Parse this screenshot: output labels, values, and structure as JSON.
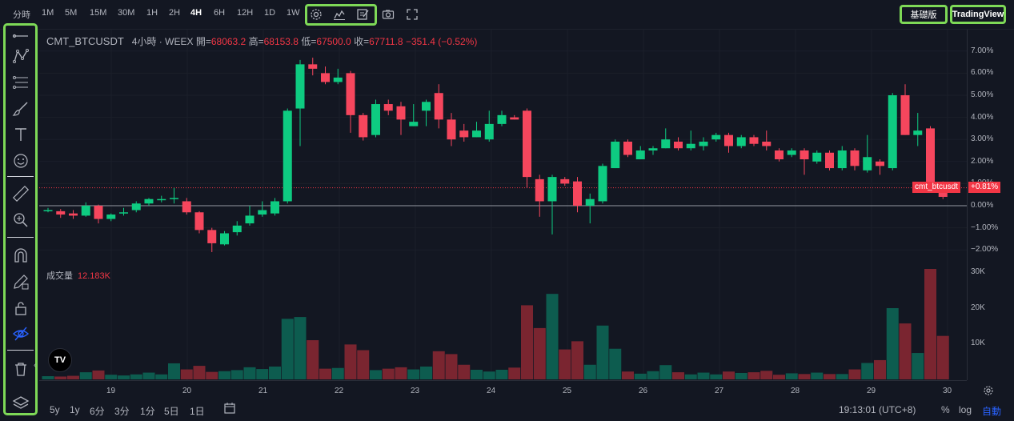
{
  "colors": {
    "up": "#089981",
    "down": "#f23645",
    "up_bright": "#0ecb81",
    "down_bright": "#f6465d",
    "highlight": "#7ed957",
    "volume_up": "#0d5c4f",
    "volume_down": "#7a2530"
  },
  "toolbar": {
    "timeframes": [
      "分時",
      "1M",
      "5M",
      "15M",
      "30M",
      "1H",
      "2H",
      "4H",
      "6H",
      "12H",
      "1D",
      "1W"
    ],
    "active_timeframe": "4H",
    "icons": [
      "settings-icon",
      "indicators-icon",
      "templates-icon",
      "camera-icon",
      "fullscreen-icon"
    ],
    "basic_label": "基礎版",
    "tradingview_label": "TradingView"
  },
  "left_tools": [
    "horizontal-line-icon",
    "pattern-icon",
    "fib-icon",
    "brush-icon",
    "text-icon",
    "emoji-icon",
    "ruler-icon",
    "zoom-in-icon",
    "magnet-icon",
    "lock-drawing-icon",
    "lock-icon",
    "hide-icon",
    "trash-icon",
    "layers-icon"
  ],
  "legend": {
    "symbol": "CMT_BTCUSDT",
    "interval_exchange": "4小時 · WEEX",
    "open_label": "開=",
    "open": "68063.2",
    "high_label": "高=",
    "high": "68153.8",
    "low_label": "低=",
    "low": "67500.0",
    "close_label": "收=",
    "close": "67711.8",
    "change": "−351.4 (−0.52%)"
  },
  "volume_legend": {
    "label": "成交量",
    "value": "12.183K"
  },
  "badges": {
    "symbol": "cmt_btcusdt",
    "pct": "+0.81%"
  },
  "bottom": {
    "ranges": [
      "5y",
      "1y",
      "6分",
      "3分",
      "1分",
      "5日",
      "1日"
    ],
    "clock": "19:13:01 (UTC+8)",
    "pct": "%",
    "log": "log",
    "auto": "自動"
  },
  "logo_text": "TV",
  "chart_data": {
    "type": "candlestick",
    "price_axis_labels": [
      "7.00%",
      "6.00%",
      "5.00%",
      "4.00%",
      "3.00%",
      "2.00%",
      "1.00%",
      "0.00%",
      "−1.00%",
      "−2.00%"
    ],
    "volume_axis_labels": [
      "30K",
      "20K",
      "10K"
    ],
    "x_labels": [
      "19",
      "20",
      "21",
      "22",
      "23",
      "24",
      "25",
      "26",
      "27",
      "28",
      "29",
      "30"
    ],
    "ylim_pct": [
      -2.5,
      7.3
    ],
    "volume_max": 34000,
    "current_pct": 0.81,
    "candles": [
      [
        -0.2,
        -0.2,
        -0.3,
        -0.1,
        900
      ],
      [
        -0.25,
        -0.4,
        -0.55,
        -0.15,
        800
      ],
      [
        -0.35,
        -0.45,
        -0.6,
        -0.2,
        1000
      ],
      [
        -0.45,
        0.0,
        -0.5,
        0.15,
        2000
      ],
      [
        0.0,
        -0.6,
        -0.8,
        0.05,
        2500
      ],
      [
        -0.6,
        -0.4,
        -0.7,
        -0.35,
        1300
      ],
      [
        -0.35,
        -0.3,
        -0.45,
        -0.1,
        1100
      ],
      [
        -0.2,
        0.1,
        -0.3,
        0.2,
        1400
      ],
      [
        0.1,
        0.3,
        0.0,
        0.35,
        1900
      ],
      [
        0.3,
        0.3,
        0.15,
        0.45,
        1400
      ],
      [
        0.3,
        0.35,
        0.1,
        0.8,
        4500
      ],
      [
        0.2,
        -0.3,
        -0.4,
        0.35,
        2800
      ],
      [
        -0.3,
        -1.1,
        -1.25,
        -0.25,
        3800
      ],
      [
        -1.1,
        -1.7,
        -2.1,
        -1.0,
        2100
      ],
      [
        -1.75,
        -1.25,
        -1.8,
        -1.15,
        2300
      ],
      [
        -1.2,
        -0.9,
        -1.35,
        -0.7,
        2600
      ],
      [
        -0.8,
        -0.45,
        -0.9,
        0.0,
        3400
      ],
      [
        -0.4,
        -0.2,
        -0.5,
        0.2,
        2900
      ],
      [
        -0.35,
        0.2,
        -0.45,
        0.35,
        3600
      ],
      [
        0.2,
        4.3,
        0.1,
        4.4,
        17000
      ],
      [
        4.4,
        6.4,
        2.7,
        6.6,
        17500
      ],
      [
        6.4,
        6.2,
        5.9,
        6.7,
        11000
      ],
      [
        6.0,
        5.6,
        5.5,
        6.3,
        3000
      ],
      [
        5.6,
        5.8,
        5.5,
        6.2,
        3200
      ],
      [
        6.0,
        4.1,
        3.3,
        6.1,
        9800
      ],
      [
        4.1,
        3.1,
        2.95,
        4.2,
        8200
      ],
      [
        3.2,
        4.6,
        3.1,
        4.8,
        2600
      ],
      [
        4.6,
        4.3,
        4.1,
        4.8,
        3000
      ],
      [
        4.5,
        3.9,
        3.2,
        4.7,
        3400
      ],
      [
        3.6,
        3.8,
        3.6,
        4.6,
        2800
      ],
      [
        4.3,
        4.7,
        3.6,
        4.8,
        3600
      ],
      [
        5.1,
        3.9,
        3.5,
        5.5,
        7900
      ],
      [
        3.9,
        3.0,
        2.7,
        4.2,
        7100
      ],
      [
        3.4,
        3.1,
        2.9,
        3.7,
        4100
      ],
      [
        3.1,
        3.4,
        3.1,
        3.8,
        2700
      ],
      [
        3.0,
        3.7,
        2.9,
        4.3,
        2200
      ],
      [
        3.7,
        4.1,
        3.6,
        4.3,
        2700
      ],
      [
        4.0,
        3.9,
        3.9,
        4.1,
        3300
      ],
      [
        4.3,
        1.3,
        0.8,
        4.4,
        20800
      ],
      [
        1.2,
        0.2,
        -0.5,
        1.4,
        14400
      ],
      [
        0.2,
        1.3,
        -1.3,
        1.4,
        24000
      ],
      [
        1.2,
        1.0,
        0.9,
        1.3,
        8400
      ],
      [
        1.1,
        0.0,
        -0.3,
        1.3,
        10700
      ],
      [
        0.0,
        0.3,
        -0.8,
        0.55,
        4100
      ],
      [
        0.2,
        1.8,
        0.1,
        1.9,
        15100
      ],
      [
        1.7,
        2.9,
        1.7,
        3.0,
        8600
      ],
      [
        2.9,
        2.3,
        2.2,
        3.0,
        2200
      ],
      [
        2.1,
        2.5,
        2.1,
        2.7,
        1600
      ],
      [
        2.5,
        2.6,
        2.3,
        2.7,
        2300
      ],
      [
        2.6,
        3.0,
        2.6,
        3.5,
        4000
      ],
      [
        2.9,
        2.6,
        2.5,
        3.1,
        2000
      ],
      [
        2.6,
        2.8,
        2.5,
        3.4,
        1400
      ],
      [
        2.7,
        2.9,
        2.5,
        3.1,
        1900
      ],
      [
        3.0,
        3.2,
        2.9,
        3.3,
        1400
      ],
      [
        3.2,
        2.7,
        2.4,
        3.3,
        2200
      ],
      [
        2.7,
        3.1,
        2.6,
        3.2,
        1800
      ],
      [
        3.1,
        2.8,
        2.7,
        3.2,
        2000
      ],
      [
        2.9,
        2.7,
        2.5,
        3.4,
        2400
      ],
      [
        2.5,
        2.1,
        2.0,
        2.6,
        1300
      ],
      [
        2.3,
        2.5,
        2.2,
        2.6,
        1700
      ],
      [
        2.5,
        2.1,
        1.4,
        2.6,
        1500
      ],
      [
        2.0,
        2.4,
        1.9,
        2.5,
        1900
      ],
      [
        2.4,
        1.7,
        1.6,
        2.5,
        1500
      ],
      [
        1.7,
        2.5,
        1.6,
        2.7,
        1500
      ],
      [
        2.5,
        1.8,
        1.6,
        2.6,
        2800
      ],
      [
        1.6,
        2.2,
        1.5,
        3.2,
        4600
      ],
      [
        2.0,
        1.8,
        1.4,
        2.1,
        5400
      ],
      [
        1.7,
        5.0,
        1.6,
        5.1,
        20000
      ],
      [
        5.0,
        3.2,
        3.2,
        5.5,
        15700
      ],
      [
        3.2,
        3.4,
        2.7,
        4.2,
        7400
      ],
      [
        3.5,
        0.8,
        0.6,
        3.6,
        31000
      ],
      [
        0.9,
        0.4,
        0.3,
        1.1,
        12200
      ]
    ]
  }
}
